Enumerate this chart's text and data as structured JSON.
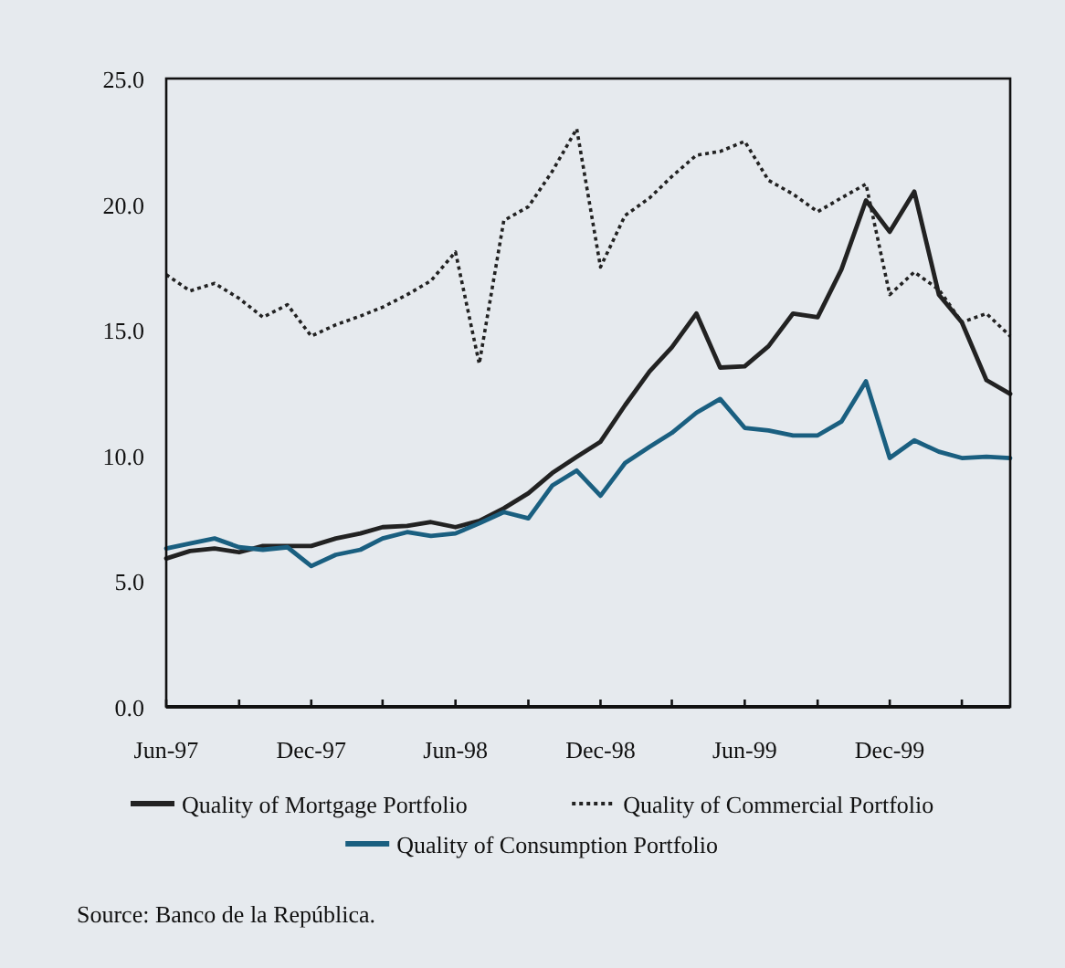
{
  "chart_data": {
    "type": "line",
    "xlim": [
      "1997-06",
      "2000-05"
    ],
    "x": [
      "1997-06",
      "1997-07",
      "1997-08",
      "1997-09",
      "1997-10",
      "1997-11",
      "1997-12",
      "1998-01",
      "1998-02",
      "1998-03",
      "1998-04",
      "1998-05",
      "1998-06",
      "1998-07",
      "1998-08",
      "1998-09",
      "1998-10",
      "1998-11",
      "1998-12",
      "1999-01",
      "1999-02",
      "1999-03",
      "1999-04",
      "1999-05",
      "1999-06",
      "1999-07",
      "1999-08",
      "1999-09",
      "1999-10",
      "1999-11",
      "1999-12",
      "2000-01",
      "2000-02",
      "2000-03",
      "2000-04",
      "2000-05"
    ],
    "xticks": [
      {
        "value": "1997-06",
        "label": "Jun-97"
      },
      {
        "value": "1997-09",
        "label": null
      },
      {
        "value": "1997-12",
        "label": "Dec-97"
      },
      {
        "value": "1998-03",
        "label": null
      },
      {
        "value": "1998-06",
        "label": "Jun-98"
      },
      {
        "value": "1998-09",
        "label": null
      },
      {
        "value": "1998-12",
        "label": "Dec-98"
      },
      {
        "value": "1999-03",
        "label": null
      },
      {
        "value": "1999-06",
        "label": "Jun-99"
      },
      {
        "value": "1999-09",
        "label": null
      },
      {
        "value": "1999-12",
        "label": "Dec-99"
      },
      {
        "value": "2000-03",
        "label": null
      }
    ],
    "ylim": [
      0,
      25
    ],
    "yticks": [
      {
        "value": 0,
        "label": "0.0"
      },
      {
        "value": 5,
        "label": "5.0"
      },
      {
        "value": 10,
        "label": "10.0"
      },
      {
        "value": 15,
        "label": "15.0"
      },
      {
        "value": 20,
        "label": "20.0"
      },
      {
        "value": 25,
        "label": "25.0"
      }
    ],
    "grid": false,
    "legend": "bottom",
    "marker": "none",
    "series": [
      {
        "name": "Quality of Mortgage Portfolio",
        "color": "#222222",
        "line_style": "solid",
        "values": [
          5.9,
          6.2,
          6.3,
          6.15,
          6.4,
          6.4,
          6.4,
          6.7,
          6.9,
          7.15,
          7.2,
          7.35,
          7.15,
          7.4,
          7.9,
          8.5,
          9.3,
          9.95,
          10.55,
          12.0,
          13.35,
          14.3,
          15.65,
          13.5,
          13.55,
          14.35,
          15.65,
          15.5,
          17.4,
          20.15,
          18.9,
          20.5,
          16.4,
          15.3,
          13.0,
          12.45
        ]
      },
      {
        "name": "Quality of Commercial Portfolio",
        "color": "#222222",
        "line_style": "dotted",
        "values": [
          17.2,
          16.55,
          16.85,
          16.25,
          15.5,
          16.0,
          14.75,
          15.2,
          15.55,
          15.9,
          16.4,
          16.95,
          18.1,
          13.65,
          19.35,
          19.9,
          21.3,
          23.0,
          17.5,
          19.55,
          20.25,
          21.1,
          21.95,
          22.1,
          22.5,
          20.95,
          20.4,
          19.7,
          20.25,
          20.8,
          16.4,
          17.3,
          16.6,
          15.3,
          15.65,
          14.75
        ]
      },
      {
        "name": "Quality of Consumption Portfolio",
        "color": "#1a5f80",
        "line_style": "solid",
        "values": [
          6.3,
          6.5,
          6.7,
          6.35,
          6.25,
          6.35,
          5.6,
          6.05,
          6.25,
          6.7,
          6.95,
          6.8,
          6.9,
          7.3,
          7.75,
          7.5,
          8.8,
          9.4,
          8.4,
          9.7,
          10.35,
          10.9,
          11.7,
          12.25,
          11.1,
          11.0,
          10.8,
          10.8,
          11.35,
          12.95,
          9.9,
          10.6,
          10.15,
          9.9,
          9.95,
          9.9
        ]
      }
    ],
    "annotations": [
      "Source: Banco de la República."
    ]
  }
}
